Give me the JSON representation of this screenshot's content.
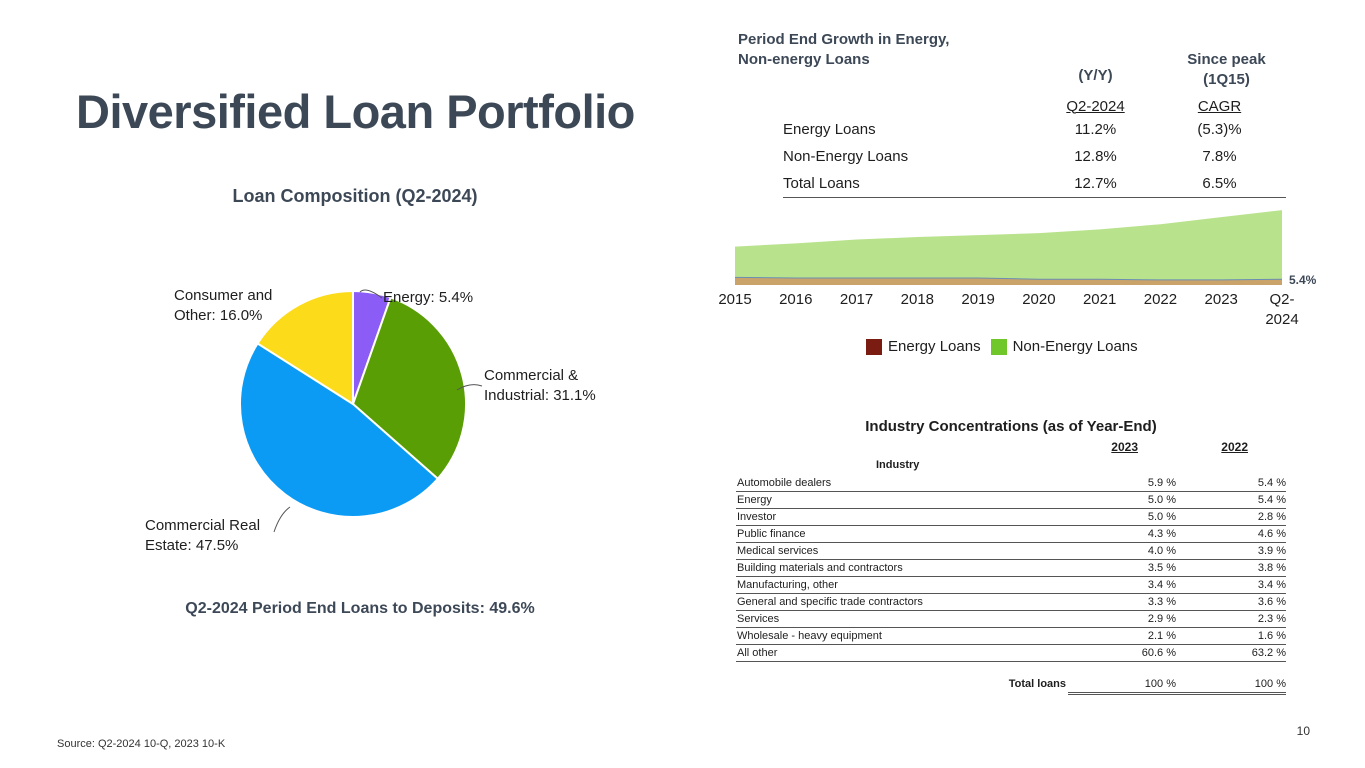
{
  "title": "Diversified Loan Portfolio",
  "pie": {
    "title": "Loan Composition (Q2-2024)",
    "loans_to_deposits": "Q2-2024 Period End Loans to Deposits: 49.6%"
  },
  "growth": {
    "heading_line1": "Period End Growth in Energy,",
    "heading_line2": "Non-energy Loans",
    "col2_header": "(Y/Y)",
    "col3_header_line1": "Since peak",
    "col3_header_line2": "(1Q15)",
    "col2_sub": "Q2-2024",
    "col3_sub": "CAGR",
    "rows": [
      {
        "label": "Energy Loans",
        "yy": "11.2%",
        "cagr": "(5.3)%"
      },
      {
        "label": "Non-Energy Loans",
        "yy": "12.8%",
        "cagr": "7.8%"
      },
      {
        "label": "Total Loans",
        "yy": "12.7%",
        "cagr": "6.5%"
      }
    ]
  },
  "industry": {
    "title": "Industry Concentrations (as of Year-End)",
    "year1": "2023",
    "year2": "2022",
    "col_label": "Industry",
    "rows": [
      {
        "name": "Automobile dealers",
        "v2023": "5.9 %",
        "v2022": "5.4 %"
      },
      {
        "name": "Energy",
        "v2023": "5.0 %",
        "v2022": "5.4 %"
      },
      {
        "name": "Investor",
        "v2023": "5.0 %",
        "v2022": "2.8 %"
      },
      {
        "name": "Public finance",
        "v2023": "4.3 %",
        "v2022": "4.6 %"
      },
      {
        "name": "Medical services",
        "v2023": "4.0 %",
        "v2022": "3.9 %"
      },
      {
        "name": "Building materials and contractors",
        "v2023": "3.5 %",
        "v2022": "3.8 %"
      },
      {
        "name": "Manufacturing, other",
        "v2023": "3.4 %",
        "v2022": "3.4 %"
      },
      {
        "name": "General and specific trade contractors",
        "v2023": "3.3 %",
        "v2022": "3.6 %"
      },
      {
        "name": "Services",
        "v2023": "2.9 %",
        "v2022": "2.3 %"
      },
      {
        "name": "Wholesale - heavy equipment",
        "v2023": "2.1 %",
        "v2022": "1.6 %"
      },
      {
        "name": "All other",
        "v2023": "60.6 %",
        "v2022": "63.2 %"
      }
    ],
    "total_label": "Total loans",
    "total_2023": "100 %",
    "total_2022": "100 %"
  },
  "source": "Source: Q2-2024 10-Q, 2023 10-K",
  "page_number": "10",
  "chart_data": [
    {
      "type": "pie",
      "title": "Loan Composition (Q2-2024)",
      "slices": [
        {
          "label_line1": "Energy: 5.4%",
          "label_line2": "",
          "value": 5.4,
          "color": "#8b5cf6"
        },
        {
          "label_line1": "Commercial &",
          "label_line2": "Industrial: 31.1%",
          "value": 31.1,
          "color": "#5a9e06"
        },
        {
          "label_line1": "Commercial Real",
          "label_line2": "Estate: 47.5%",
          "value": 47.5,
          "color": "#0b9bf5"
        },
        {
          "label_line1": "Consumer and",
          "label_line2": "Other: 16.0%",
          "value": 16.0,
          "color": "#fbdb1a"
        }
      ]
    },
    {
      "type": "area",
      "stacked": true,
      "x_labels": [
        "2015",
        "2016",
        "2017",
        "2018",
        "2019",
        "2020",
        "2021",
        "2022",
        "2023",
        "Q2-2024"
      ],
      "series": [
        {
          "name": "Energy Loans",
          "color": "#7b1c13",
          "values": [
            12,
            11,
            11,
            11,
            11,
            9,
            9,
            8,
            8,
            9
          ]
        },
        {
          "name": "Non-Energy Loans",
          "color": "#b9e28d",
          "values": [
            48,
            54,
            60,
            64,
            67,
            72,
            78,
            87,
            98,
            108
          ]
        }
      ],
      "end_label": "5.4%",
      "ylim": [
        0,
        125
      ],
      "legend": "bottom"
    }
  ]
}
